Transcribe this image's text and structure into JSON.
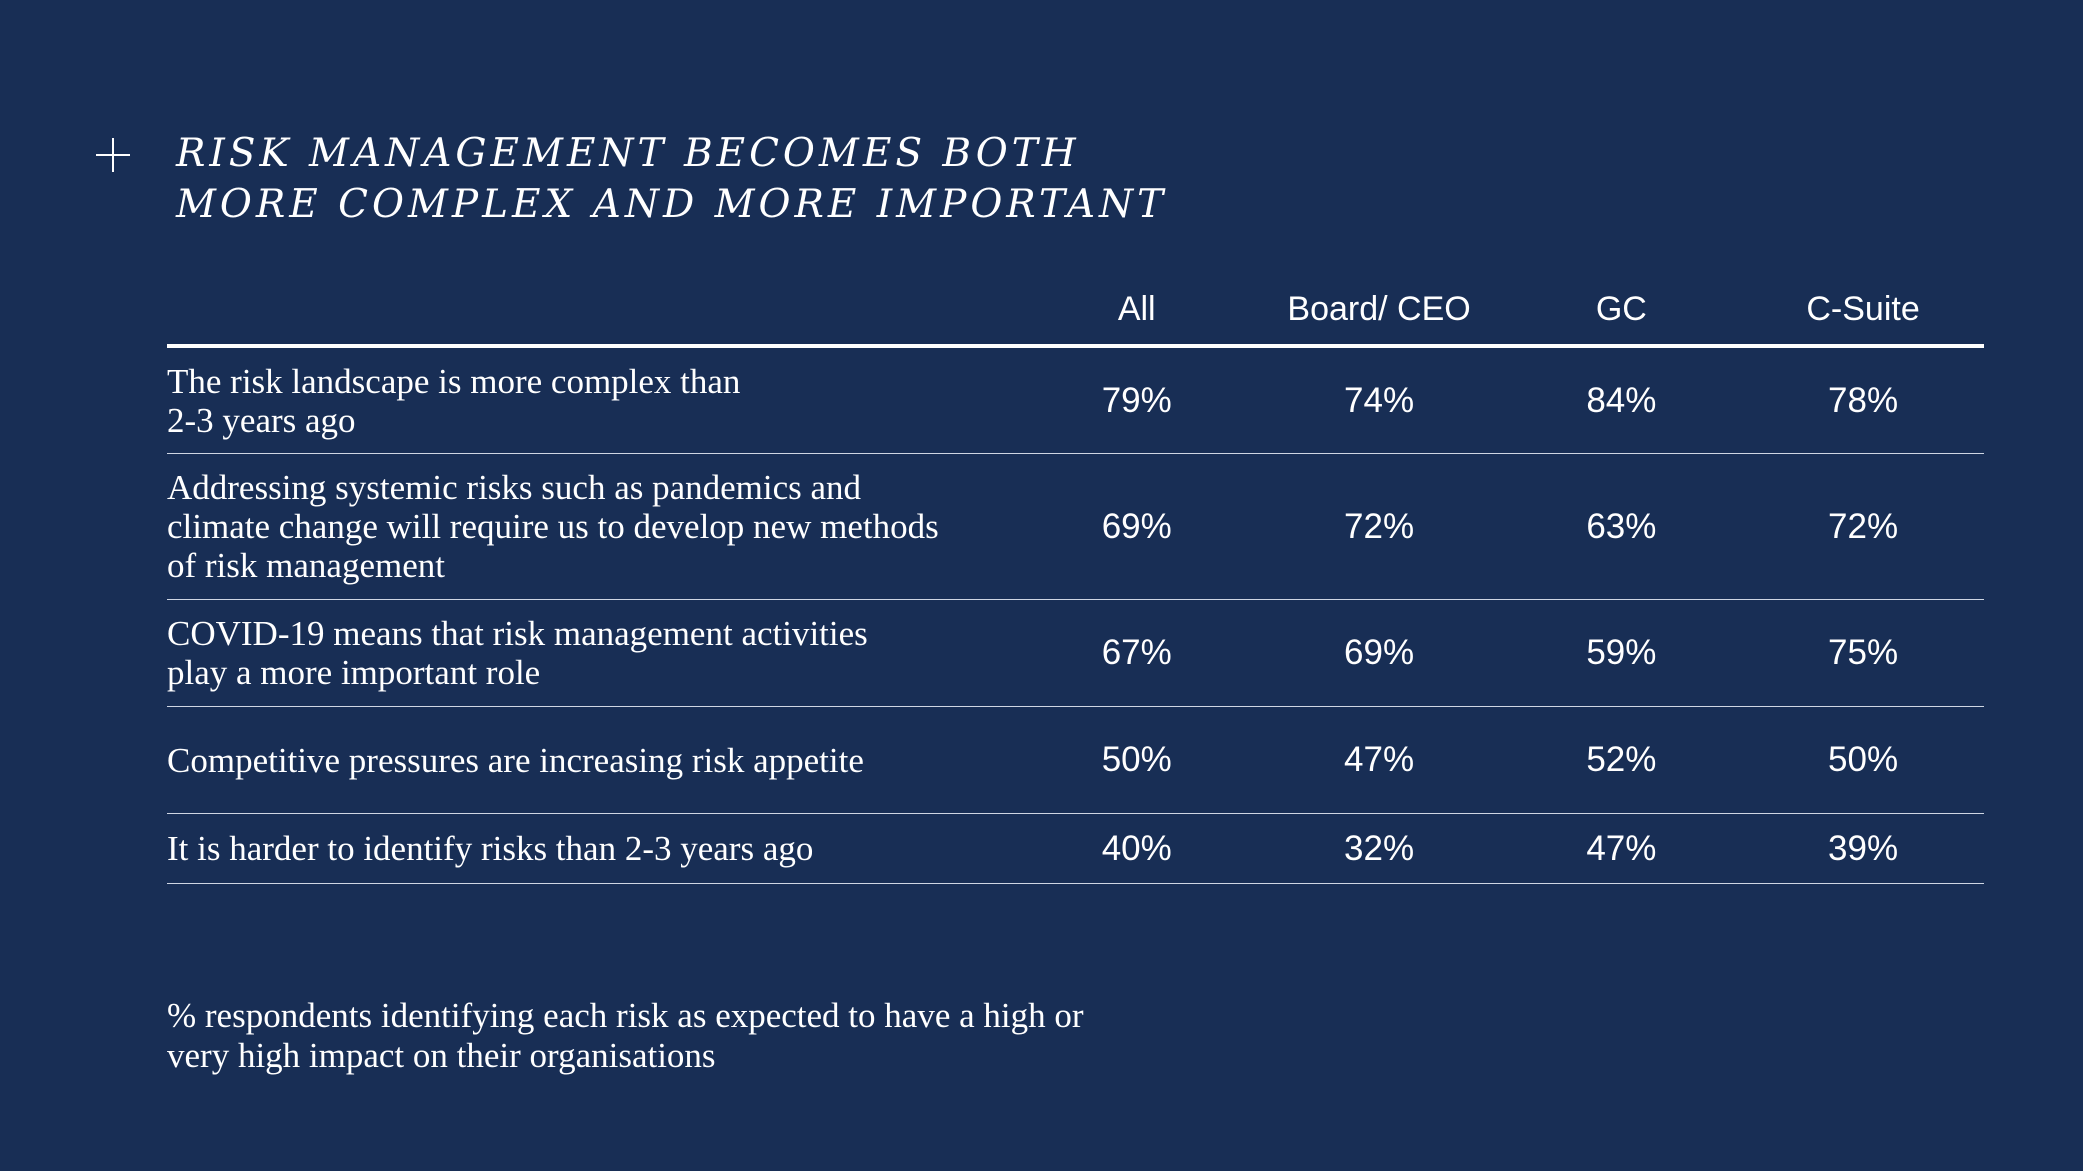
{
  "title": {
    "line1": "RISK MANAGEMENT BECOMES BOTH",
    "line2": "MORE COMPLEX AND MORE IMPORTANT"
  },
  "chart_data": {
    "type": "table",
    "columns": [
      "All",
      "Board/ CEO",
      "GC",
      "C-Suite"
    ],
    "rows": [
      {
        "label": "The risk landscape is more complex than 2-3 years ago",
        "values": [
          "79%",
          "74%",
          "84%",
          "78%"
        ]
      },
      {
        "label": "Addressing systemic risks such as pandemics and climate change will require us to develop new methods of risk management",
        "values": [
          "69%",
          "72%",
          "63%",
          "72%"
        ]
      },
      {
        "label": "COVID-19 means that risk management activities play a more important role",
        "values": [
          "67%",
          "69%",
          "59%",
          "75%"
        ]
      },
      {
        "label": "Competitive pressures are increasing risk appetite",
        "values": [
          "50%",
          "47%",
          "52%",
          "50%"
        ]
      },
      {
        "label": "It is harder to identify risks than 2-3 years ago",
        "values": [
          "40%",
          "32%",
          "47%",
          "39%"
        ]
      }
    ]
  },
  "footnote": "% respondents identifying each risk as expected to have a high or very high impact on their organisations",
  "colors": {
    "background": "#182e55",
    "text": "#ffffff",
    "rule": "#cfd6e3"
  }
}
